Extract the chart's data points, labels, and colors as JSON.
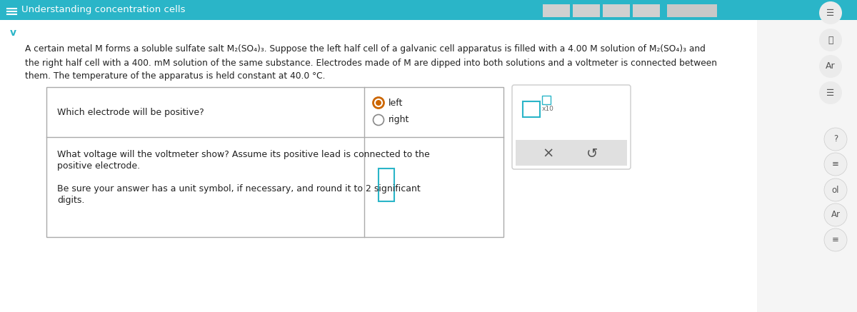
{
  "title": "Understanding concentration cells",
  "title_bg": "#2ab5c8",
  "title_text_color": "#ffffff",
  "body_bg": "#f5f5f5",
  "main_bg": "#ffffff",
  "para_line1": "A certain metal M forms a soluble sulfate salt M",
  "para_line1_sub1": "2",
  "para_line1_mid1": "(SO",
  "para_line1_sub2": "4",
  "para_line1_mid2": ")",
  "para_line1_sub3": "3",
  "para_line1_end": ". Suppose the left half cell of a galvanic cell apparatus is filled with a 4.00 M solution of M",
  "para_line1_sub4": "2",
  "para_line1_mid3": "(SO",
  "para_line1_sub5": "4",
  "para_line1_mid4": ")",
  "para_line1_sub6": "3",
  "para_line1_final": " and",
  "para_line2": "the right half cell with a 400. mM solution of the same substance. Electrodes made of M are dipped into both solutions and a voltmeter is connected between",
  "para_line3": "them. The temperature of the apparatus is held constant at 40.0 °C.",
  "table_row1_question": "Which electrode will be positive?",
  "radio_left": "left",
  "radio_right": "right",
  "table_row2_line1": "What voltage will the voltmeter show? Assume its positive lead is connected to the",
  "table_row2_line2": "positive electrode.",
  "table_row2_line3": "",
  "table_row2_line4": "Be sure your answer has a unit symbol, if necessary, and round it to 2 significant",
  "table_row2_line5": "digits.",
  "header_bar_color": "#2ab5c8",
  "table_border_color": "#aaaaaa",
  "radio_color": "#cc6600",
  "radio_ring_color": "#cc6600",
  "text_color": "#222222",
  "light_gray": "#e0e0e0",
  "teal_color": "#2ab5c8",
  "panel_border_color": "#cccccc",
  "chevron_color": "#2ab5c8"
}
